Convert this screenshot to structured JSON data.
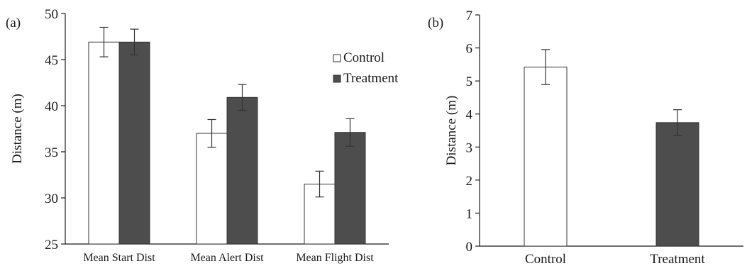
{
  "chart_data": [
    {
      "panel_label": "(a)",
      "type": "bar",
      "ylabel": "Distance (m)",
      "ylim": [
        25,
        50
      ],
      "yticks": [
        25,
        30,
        35,
        40,
        45,
        50
      ],
      "categories": [
        "Mean Start Dist",
        "Mean Alert Dist",
        "Mean Flight Dist"
      ],
      "series": [
        {
          "name": "Control",
          "color": "#ffffff",
          "values": [
            46.9,
            37.0,
            31.5
          ],
          "errors": [
            1.6,
            1.5,
            1.4
          ]
        },
        {
          "name": "Treatment",
          "color": "#4d4d4d",
          "values": [
            46.9,
            40.9,
            37.1
          ],
          "errors": [
            1.4,
            1.4,
            1.5
          ]
        }
      ],
      "legend_position": "top-right",
      "grid": false
    },
    {
      "panel_label": "(b)",
      "type": "bar",
      "ylabel": "Distance (m)",
      "ylim": [
        0,
        7
      ],
      "yticks": [
        0,
        1,
        2,
        3,
        4,
        5,
        6,
        7
      ],
      "categories": [
        "Control",
        "Treatment"
      ],
      "values": [
        5.42,
        3.74
      ],
      "errors": [
        0.53,
        0.39
      ],
      "colors": [
        "#ffffff",
        "#4d4d4d"
      ],
      "grid": false
    }
  ]
}
